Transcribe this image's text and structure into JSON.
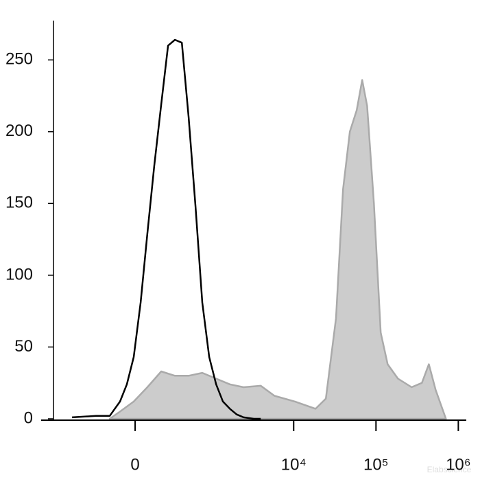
{
  "chart_data": {
    "type": "histogram-overlay",
    "xscale": "biexponential",
    "xlim": [
      -1150,
      1250000
    ],
    "xticks": [
      {
        "value": 0,
        "label": "0"
      },
      {
        "value": 10000,
        "label": "10⁴"
      },
      {
        "value": 100000,
        "label": "10⁵"
      },
      {
        "value": 1000000,
        "label": "10⁶"
      }
    ],
    "ylim": [
      0,
      275
    ],
    "yticks": [
      0,
      50,
      100,
      150,
      200,
      250
    ],
    "watermark": "Elabscience",
    "series": [
      {
        "color": "#000000",
        "x": [
          -671,
          -314,
          -183,
          -103,
          -55,
          -9,
          37,
          83,
          133,
          189,
          251,
          322,
          406,
          503,
          620,
          758,
          927,
          1130,
          1372,
          1668,
          2024,
          2455,
          3278,
          3970
        ],
        "values": [
          1,
          2,
          2,
          12,
          24,
          43,
          81,
          129,
          176,
          219,
          260,
          264,
          262,
          210,
          148,
          81,
          43,
          24,
          12,
          7,
          3,
          1,
          0,
          0
        ]
      },
      {
        "color": "#aaaaaa",
        "fill": "#cccccc",
        "x": [
          -183,
          -103,
          -9,
          83,
          189,
          322,
          503,
          758,
          1130,
          1668,
          2455,
          3970,
          5830,
          10380,
          18440,
          24600,
          32700,
          39800,
          48100,
          58300,
          68000,
          78000,
          94300,
          114200,
          138400,
          184600,
          271000,
          361700,
          438200,
          531000,
          707700
        ],
        "values": [
          0,
          5,
          12,
          22,
          33,
          30,
          30,
          32,
          28,
          24,
          22,
          23,
          16,
          12,
          7,
          14,
          70,
          160,
          200,
          215,
          236,
          218,
          150,
          60,
          38,
          28,
          22,
          25,
          38,
          20,
          0
        ]
      }
    ]
  }
}
